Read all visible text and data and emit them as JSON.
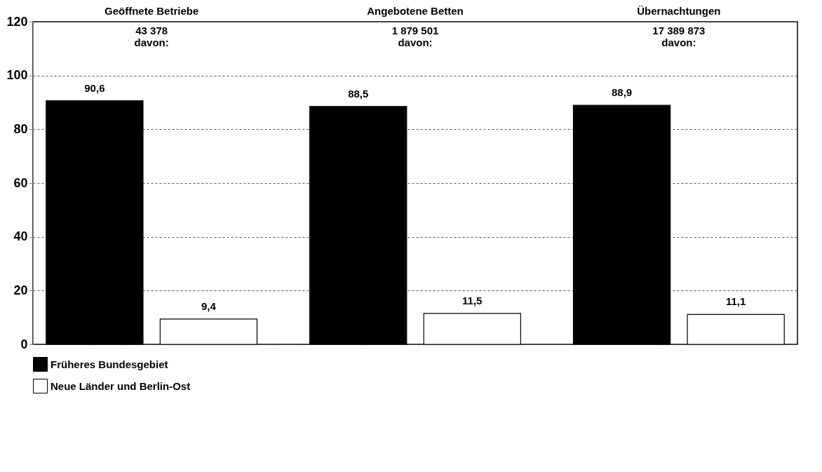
{
  "chart_data": {
    "type": "bar",
    "categories": [
      "Geöffnete Betriebe",
      "Angebotene Betten",
      "Übernachtungen"
    ],
    "series": [
      {
        "name": "Früheres Bundesgebiet",
        "color": "#000000",
        "values": [
          90.6,
          88.5,
          88.9
        ],
        "value_labels": [
          "90,6",
          "88,5",
          "88,9"
        ]
      },
      {
        "name": "Neue Länder und Berlin-Ost",
        "color": "#ffffff",
        "values": [
          9.4,
          11.5,
          11.1
        ],
        "value_labels": [
          "9,4",
          "11,5",
          "11,1"
        ]
      }
    ],
    "annotations": [
      "43 378\ndavon:",
      "1 879 501\ndavon:",
      "17 389 873\ndavon:"
    ],
    "ylim": [
      0,
      120
    ],
    "yticks": [
      0,
      20,
      40,
      60,
      80,
      100,
      120
    ],
    "grid": "y",
    "legend": "bottom"
  }
}
